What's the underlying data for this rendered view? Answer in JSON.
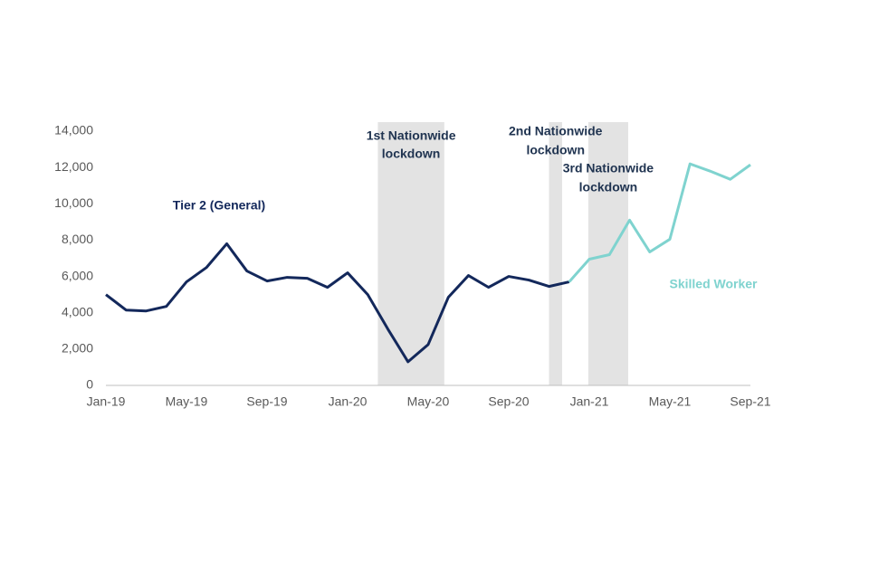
{
  "chart_data": {
    "type": "line",
    "categories": [
      "Jan-19",
      null,
      null,
      null,
      "May-19",
      null,
      null,
      null,
      "Sep-19",
      null,
      null,
      null,
      "Jan-20",
      null,
      null,
      null,
      "May-20",
      null,
      null,
      null,
      "Sep-20",
      null,
      null,
      null,
      "Jan-21",
      null,
      null,
      null,
      "May-21",
      null,
      null,
      null,
      "Sep-21"
    ],
    "series": [
      {
        "name": "Tier 2 (General)",
        "color": "#13285b",
        "values": [
          5000,
          4150,
          4100,
          4350,
          5700,
          6500,
          7800,
          6300,
          5750,
          5950,
          5900,
          5400,
          6200,
          5000,
          3100,
          1300,
          2250,
          4850,
          6050,
          5400,
          6000,
          5800,
          5450,
          5700,
          null,
          null,
          null,
          null,
          null,
          null,
          null,
          null,
          null
        ]
      },
      {
        "name": "Skilled Worker",
        "color": "#7fd3cf",
        "values": [
          null,
          null,
          null,
          null,
          null,
          null,
          null,
          null,
          null,
          null,
          null,
          null,
          null,
          null,
          null,
          null,
          null,
          null,
          null,
          null,
          null,
          null,
          null,
          5700,
          6950,
          7200,
          9100,
          7350,
          8050,
          12200,
          11800,
          11350,
          12150
        ]
      }
    ],
    "bands": [
      {
        "start": 13.5,
        "end": 16.8,
        "label": [
          "1st Nationwide",
          "lockdown"
        ]
      },
      {
        "start": 22.0,
        "end": 22.65,
        "label": [
          "2nd Nationwide",
          "lockdown"
        ]
      },
      {
        "start": 23.95,
        "end": 25.93,
        "label": [
          "3rd Nationwide",
          "lockdown"
        ]
      }
    ],
    "band_color": "#e3e3e3",
    "ylim": [
      0,
      14000
    ],
    "yticks": [
      0,
      {
        "value": 2000,
        "label": "2,000"
      },
      {
        "value": 4000,
        "label": "4,000"
      },
      {
        "value": 6000,
        "label": "6,000"
      },
      {
        "value": 8000,
        "label": "8,000"
      },
      {
        "value": 10000,
        "label": "10,000"
      },
      {
        "value": 12000,
        "label": "12,000"
      },
      {
        "value": 14000,
        "label": "14,000"
      }
    ],
    "grid": false
  }
}
